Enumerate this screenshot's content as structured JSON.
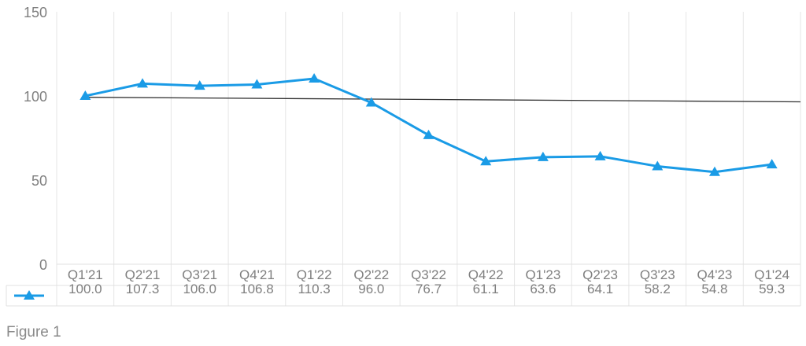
{
  "figure": {
    "caption": "Figure 1"
  },
  "chart_data": {
    "type": "line",
    "categories": [
      "Q1'21",
      "Q2'21",
      "Q3'21",
      "Q4'21",
      "Q1'22",
      "Q2'22",
      "Q3'22",
      "Q4'22",
      "Q1'23",
      "Q2'23",
      "Q3'23",
      "Q4'23",
      "Q1'24"
    ],
    "series": [
      {
        "values": [
          100.0,
          107.3,
          106.0,
          106.8,
          110.3,
          96.0,
          76.7,
          61.1,
          63.6,
          64.1,
          58.2,
          54.8,
          59.3
        ],
        "labels": [
          "100.0",
          "107.3",
          "106.0",
          "106.8",
          "110.3",
          "96.0",
          "76.7",
          "61.1",
          "63.6",
          "64.1",
          "58.2",
          "54.8",
          "59.3"
        ],
        "color": "#1a9be6",
        "marker": "triangle"
      }
    ],
    "trendline": {
      "type": "linear",
      "color": "#333333"
    },
    "ylim": [
      0,
      150
    ],
    "yticks": [
      0,
      50,
      100,
      150
    ],
    "grid": true,
    "legend": "data-table"
  }
}
